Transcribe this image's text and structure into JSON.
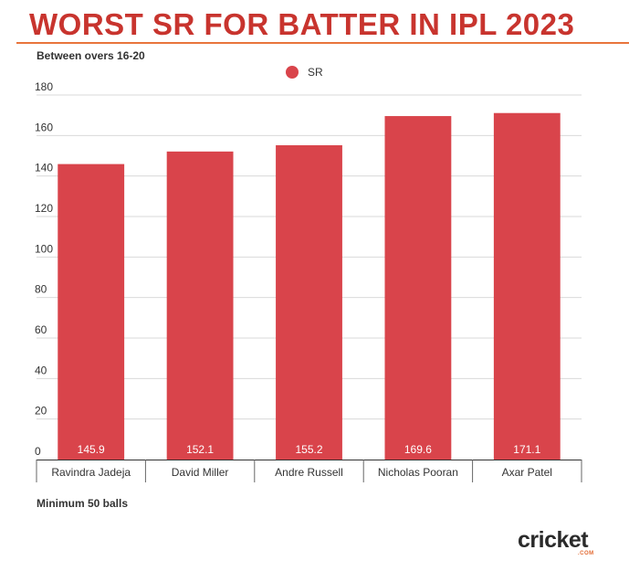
{
  "header": {
    "title": "WORST SR FOR BATTER IN IPL 2023",
    "subtitle": "Between overs 16-20"
  },
  "legend": {
    "label": "SR",
    "color": "#d9444b"
  },
  "footnote": "Minimum 50 balls",
  "logo": {
    "text": "cricket",
    "sub": ".COM",
    "accent_color": "#e26a32"
  },
  "colors": {
    "title": "#c8342e",
    "bar": "#d9444b",
    "rule": "#e8743c"
  },
  "chart_data": {
    "type": "bar",
    "title": "WORST SR FOR BATTER IN IPL 2023",
    "subtitle": "Between overs 16-20",
    "xlabel": "",
    "ylabel": "",
    "categories": [
      "Ravindra Jadeja",
      "David Miller",
      "Andre Russell",
      "Nicholas Pooran",
      "Axar Patel"
    ],
    "series": [
      {
        "name": "SR",
        "values": [
          145.9,
          152.1,
          155.2,
          169.6,
          171.1
        ]
      }
    ],
    "data_labels": [
      "145.9",
      "152.1",
      "155.2",
      "169.6",
      "171.1"
    ],
    "yticks": [
      0,
      20,
      40,
      60,
      80,
      100,
      120,
      140,
      160,
      180
    ],
    "ylim": [
      0,
      180
    ],
    "grid": true,
    "legend_position": "top-center"
  }
}
